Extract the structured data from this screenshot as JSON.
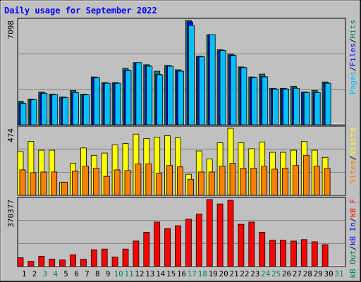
{
  "title": "Daily usage for September 2022",
  "chart_data": [
    {
      "type": "bar",
      "ylim": [
        0,
        7098
      ],
      "yticks": [
        7098
      ],
      "legend_separator": "/",
      "series": [
        {
          "name": "Hits",
          "color": "#00805c",
          "values": [
            1604,
            1750,
            2236,
            2090,
            1896,
            2333,
            2090,
            3257,
            2868,
            2868,
            3840,
            4229,
            4084,
            3646,
            4035,
            3743,
            7098,
            4667,
            6125,
            5104,
            4813,
            3938,
            3257,
            3452,
            2479,
            2479,
            2625,
            2236,
            2333,
            2917,
            null
          ]
        },
        {
          "name": "Files",
          "color": "#0000ff",
          "values": [
            1480,
            1720,
            2160,
            2060,
            1870,
            2210,
            2060,
            3230,
            2840,
            2840,
            3720,
            4229,
            4010,
            3430,
            4010,
            3670,
            7000,
            4640,
            6125,
            5080,
            4740,
            3910,
            3230,
            3280,
            2450,
            2450,
            2500,
            2210,
            2210,
            2840,
            null
          ]
        },
        {
          "name": "Pages",
          "color": "#00c0ff",
          "values": [
            1458,
            1701,
            2139,
            2042,
            1847,
            2188,
            2042,
            3208,
            2820,
            2820,
            3695,
            4229,
            3986,
            3403,
            3986,
            3646,
            6757,
            4618,
            6125,
            5055,
            4716,
            3889,
            3208,
            3257,
            2431,
            2431,
            2479,
            2188,
            2188,
            2820,
            null
          ]
        }
      ]
    },
    {
      "type": "bar",
      "ylim": [
        0,
        474
      ],
      "yticks": [
        474
      ],
      "legend_separator": "/",
      "series": [
        {
          "name": "Visits",
          "color": "#ffff00",
          "values": [
            309,
            381,
            319,
            319,
            93,
            227,
            335,
            283,
            299,
            356,
            366,
            433,
            402,
            412,
            422,
            407,
            149,
            314,
            258,
            371,
            474,
            371,
            330,
            376,
            304,
            304,
            319,
            381,
            319,
            268,
            null
          ]
        },
        {
          "name": "Sites",
          "color": "#ff8000",
          "values": [
            180,
            160,
            165,
            165,
            93,
            170,
            206,
            191,
            134,
            180,
            175,
            222,
            222,
            155,
            211,
            201,
            113,
            165,
            165,
            206,
            227,
            191,
            191,
            206,
            185,
            191,
            211,
            283,
            206,
            191,
            null
          ]
        }
      ]
    },
    {
      "type": "bar",
      "ylim": [
        0,
        370377
      ],
      "yticks": [
        370377
      ],
      "legend_separator": "/",
      "categories": [
        "1",
        "2",
        "3",
        "4",
        "5",
        "6",
        "7",
        "8",
        "9",
        "10",
        "11",
        "12",
        "13",
        "14",
        "15",
        "16",
        "17",
        "18",
        "19",
        "20",
        "21",
        "22",
        "23",
        "24",
        "25",
        "26",
        "27",
        "28",
        "29",
        "30",
        "31"
      ],
      "category_colors": [
        "#000000",
        "#000000",
        "#00805c",
        "#00805c",
        "#000000",
        "#000000",
        "#000000",
        "#000000",
        "#000000",
        "#00805c",
        "#00805c",
        "#000000",
        "#000000",
        "#000000",
        "#000000",
        "#000000",
        "#00805c",
        "#00805c",
        "#000000",
        "#000000",
        "#000000",
        "#000000",
        "#000000",
        "#00805c",
        "#00805c",
        "#000000",
        "#000000",
        "#000000",
        "#000000",
        "#000000",
        "#00805c"
      ],
      "series": [
        {
          "name": "kB F",
          "color": "#ff0000",
          "values": [
            48312,
            28182,
            56364,
            40260,
            36234,
            64416,
            40260,
            92598,
            96624,
            52338,
            96624,
            140910,
            189222,
            245586,
            209352,
            225456,
            261690,
            289872,
            370377,
            346236,
            366366,
            233508,
            245586,
            189222,
            144936,
            144936,
            140910,
            148962,
            136884,
            120780,
            null
          ]
        },
        {
          "name": "kB In",
          "color": "#0000ff",
          "values": [
            0,
            0,
            0,
            0,
            0,
            0,
            0,
            0,
            0,
            0,
            0,
            0,
            0,
            0,
            0,
            0,
            0,
            0,
            0,
            0,
            0,
            0,
            0,
            0,
            0,
            0,
            0,
            0,
            0,
            0,
            null
          ]
        },
        {
          "name": "kB Out",
          "color": "#00805c",
          "values": [
            0,
            0,
            0,
            0,
            0,
            0,
            0,
            0,
            0,
            0,
            0,
            0,
            0,
            0,
            0,
            0,
            0,
            0,
            0,
            0,
            0,
            0,
            0,
            0,
            0,
            0,
            0,
            0,
            0,
            0,
            null
          ]
        }
      ]
    }
  ]
}
